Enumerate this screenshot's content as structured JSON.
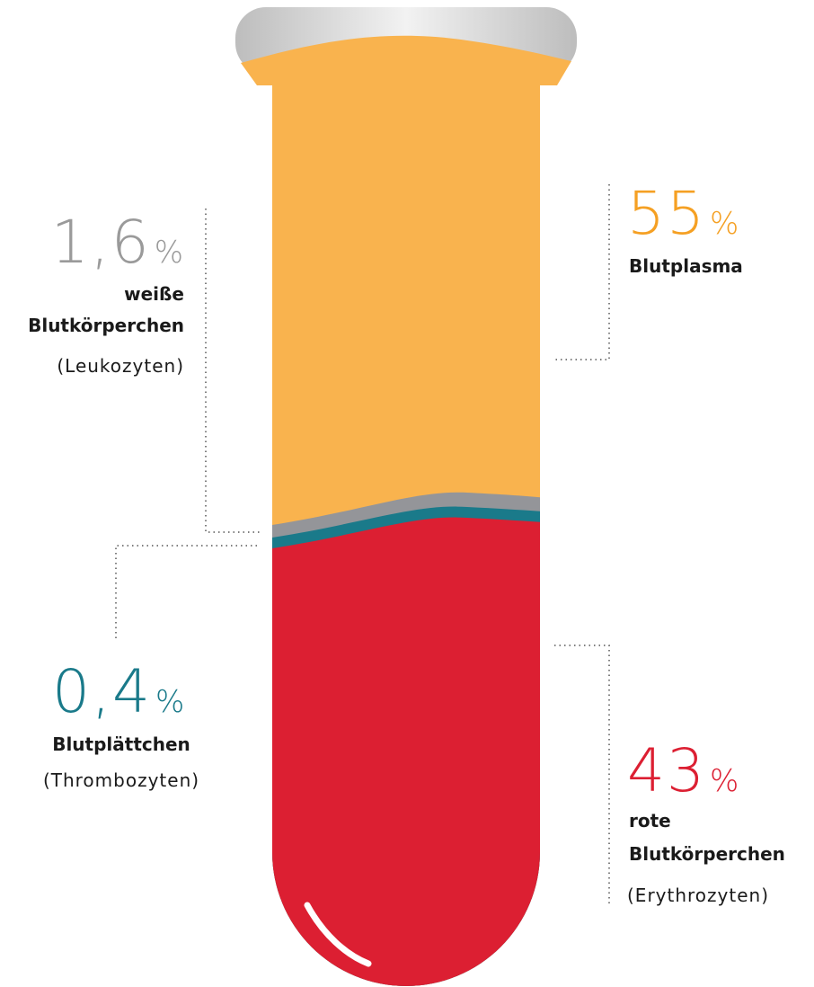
{
  "labels": [
    {
      "number": "55",
      "unit": "%",
      "lines": [
        "Blutplasma"
      ],
      "note": null
    },
    {
      "number": "1,6",
      "unit": "%",
      "lines": [
        "weiße",
        "Blutkörperchen"
      ],
      "note": "(Leukozyten)"
    },
    {
      "number": "0,4",
      "unit": "%",
      "lines": [
        "Blutplättchen"
      ],
      "note": "(Thrombozyten)"
    },
    {
      "number": "43",
      "unit": "%",
      "lines": [
        "rote",
        "Blutkörperchen"
      ],
      "note": "(Erythrozyten)"
    }
  ]
}
